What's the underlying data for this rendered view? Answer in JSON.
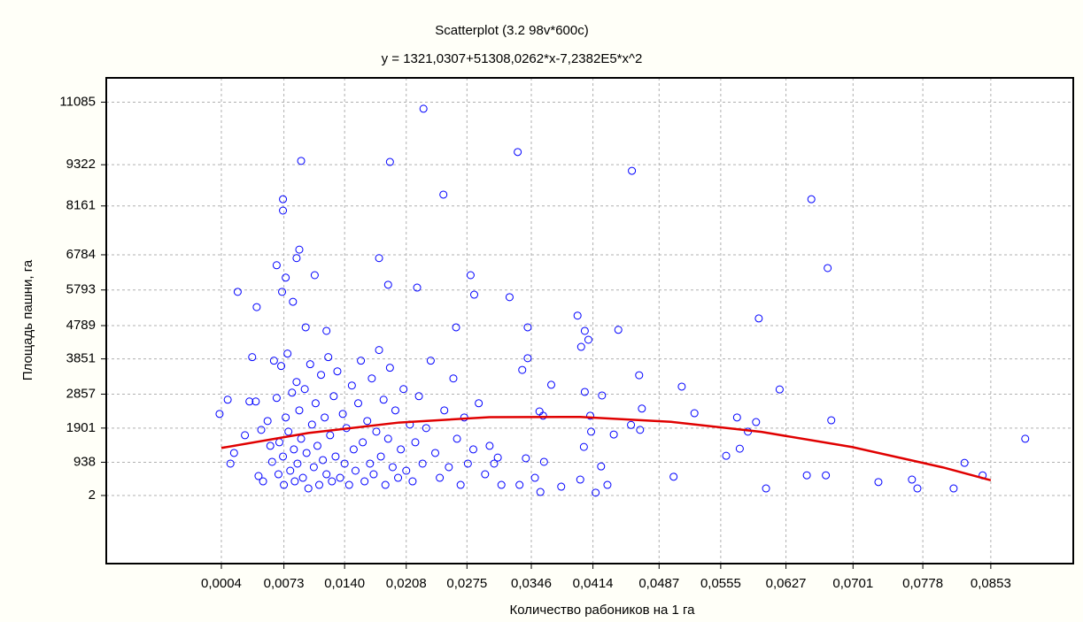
{
  "chart_data": {
    "type": "scatter",
    "title": "Scatterplot (3.2 98v*600c)",
    "subtitle": "y = 1321,0307+51308,0262*x-7,2382E5*x^2",
    "xlabel": "Количество рабоников на 1 га",
    "ylabel": "Площадь пашни, га",
    "xlim": [
      -0.0123,
      0.0944
    ],
    "ylim": [
      -1918,
      11770
    ],
    "xticks": [
      {
        "value": 0.0004,
        "label": "0,0004"
      },
      {
        "value": 0.0073,
        "label": "0,0073"
      },
      {
        "value": 0.014,
        "label": "0,0140"
      },
      {
        "value": 0.0208,
        "label": "0,0208"
      },
      {
        "value": 0.0275,
        "label": "0,0275"
      },
      {
        "value": 0.0346,
        "label": "0,0346"
      },
      {
        "value": 0.0414,
        "label": "0,0414"
      },
      {
        "value": 0.0487,
        "label": "0,0487"
      },
      {
        "value": 0.0555,
        "label": "0,0555"
      },
      {
        "value": 0.0627,
        "label": "0,0627"
      },
      {
        "value": 0.0701,
        "label": "0,0701"
      },
      {
        "value": 0.0778,
        "label": "0,0778"
      },
      {
        "value": 0.0853,
        "label": "0,0853"
      }
    ],
    "yticks": [
      2,
      938,
      1901,
      2857,
      3851,
      4789,
      5793,
      6784,
      8161,
      9322,
      11085
    ],
    "grid": true,
    "series": [
      {
        "color": "#0000ff",
        "x": [
          0.0227,
          0.0092,
          0.019,
          0.0331,
          0.0457,
          0.0072,
          0.0072,
          0.0249,
          0.0655,
          0.0673,
          0.009,
          0.0087,
          0.0065,
          0.0075,
          0.0107,
          0.0178,
          0.0188,
          0.022,
          0.0279,
          0.0022,
          0.0071,
          0.0322,
          0.0283,
          0.0043,
          0.0083,
          0.0597,
          0.0397,
          0.0342,
          0.0405,
          0.0442,
          0.0263,
          0.0097,
          0.012,
          0.0512,
          0.0465,
          0.062,
          0.0526,
          0.0573,
          0.0594,
          0.0677,
          0.0585,
          0.0561,
          0.0576,
          0.0605,
          0.065,
          0.0671,
          0.0729,
          0.0766,
          0.0772,
          0.0812,
          0.0824,
          0.0844,
          0.0891,
          0.0503,
          0.0368,
          0.0342,
          0.0336,
          0.0355,
          0.0359,
          0.034,
          0.036,
          0.035,
          0.0356,
          0.0379,
          0.0333,
          0.0401,
          0.0409,
          0.0405,
          0.0424,
          0.0411,
          0.0412,
          0.0404,
          0.0423,
          0.043,
          0.04,
          0.0417,
          0.0437,
          0.0456,
          0.0468,
          0.0466,
          0.0313,
          0.0309,
          0.0002,
          0.0011,
          0.0014,
          0.0018,
          0.003,
          0.0035,
          0.0038,
          0.0042,
          0.0045,
          0.0048,
          0.005,
          0.0055,
          0.0058,
          0.006,
          0.0062,
          0.0065,
          0.0067,
          0.0068,
          0.007,
          0.0072,
          0.0073,
          0.0075,
          0.0077,
          0.0078,
          0.008,
          0.0082,
          0.0084,
          0.0085,
          0.0087,
          0.0088,
          0.009,
          0.0092,
          0.0094,
          0.0096,
          0.0098,
          0.01,
          0.0102,
          0.0104,
          0.0106,
          0.0108,
          0.011,
          0.0112,
          0.0114,
          0.0116,
          0.0118,
          0.012,
          0.0122,
          0.0124,
          0.0126,
          0.0128,
          0.013,
          0.0132,
          0.0135,
          0.0138,
          0.014,
          0.0142,
          0.0145,
          0.0148,
          0.015,
          0.0152,
          0.0155,
          0.0158,
          0.016,
          0.0162,
          0.0165,
          0.0168,
          0.017,
          0.0172,
          0.0175,
          0.0178,
          0.018,
          0.0183,
          0.0185,
          0.0188,
          0.019,
          0.0193,
          0.0196,
          0.0199,
          0.0202,
          0.0205,
          0.0208,
          0.0212,
          0.0215,
          0.0218,
          0.0222,
          0.0226,
          0.023,
          0.0235,
          0.024,
          0.0245,
          0.025,
          0.0255,
          0.026,
          0.0264,
          0.0268,
          0.0272,
          0.0276,
          0.0282,
          0.0288,
          0.0295,
          0.03,
          0.0305
        ],
        "values": [
          10900,
          9430,
          9400,
          9680,
          9150,
          8350,
          8030,
          8480,
          8350,
          6410,
          6930,
          6690,
          6490,
          6140,
          6210,
          6690,
          5940,
          5860,
          6210,
          5740,
          5740,
          5590,
          5660,
          5310,
          5460,
          4990,
          5070,
          4740,
          4640,
          4670,
          4740,
          4740,
          4640,
          3070,
          3390,
          2990,
          2320,
          2200,
          2070,
          2120,
          1800,
          1120,
          1320,
          200,
          570,
          570,
          380,
          450,
          200,
          200,
          920,
          570,
          1600,
          530,
          3120,
          3870,
          3540,
          2370,
          2250,
          1050,
          950,
          500,
          100,
          250,
          300,
          4190,
          4390,
          2920,
          2820,
          2250,
          1800,
          1370,
          820,
          300,
          450,
          80,
          1720,
          1990,
          2450,
          1850,
          300,
          1070,
          2300,
          2700,
          900,
          1200,
          1700,
          2650,
          3900,
          2650,
          550,
          1850,
          400,
          2100,
          1400,
          950,
          3800,
          2750,
          600,
          1500,
          3650,
          1100,
          300,
          2200,
          4000,
          1800,
          700,
          2900,
          1300,
          400,
          3200,
          900,
          2400,
          1600,
          500,
          3000,
          1200,
          200,
          3700,
          2000,
          800,
          2600,
          1400,
          300,
          3400,
          1000,
          2200,
          600,
          3900,
          1700,
          400,
          2800,
          1100,
          3500,
          500,
          2300,
          900,
          1900,
          300,
          3100,
          1300,
          700,
          2600,
          3800,
          1500,
          400,
          2100,
          900,
          3300,
          600,
          1800,
          4100,
          1100,
          2700,
          300,
          1600,
          3600,
          800,
          2400,
          500,
          1300,
          3000,
          700,
          2000,
          400,
          1500,
          2800,
          900,
          1900,
          3800,
          1200,
          500,
          2400,
          800,
          3300,
          1600,
          300,
          2200,
          900,
          1300,
          2600,
          600,
          1400,
          900
        ]
      },
      {
        "type": "line",
        "color": "#e00000",
        "x": [
          0.0004,
          0.01,
          0.02,
          0.03,
          0.04,
          0.05,
          0.06,
          0.07,
          0.08,
          0.0853
        ],
        "values": [
          1341,
          1762,
          2057,
          2209,
          2215,
          2076,
          1793,
          1366,
          794,
          431
        ]
      }
    ]
  }
}
